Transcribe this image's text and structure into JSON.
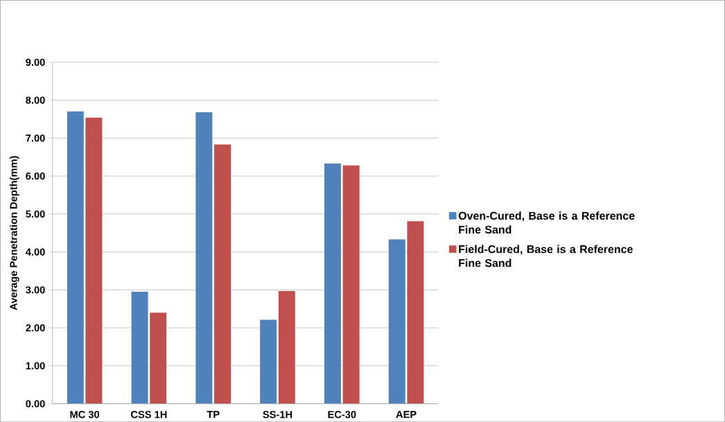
{
  "chart_data": {
    "type": "bar",
    "ylabel": "Average Penetration Depth(mm)",
    "categories": [
      "MC 30",
      "CSS 1H",
      "TP",
      "SS-1H",
      "EC-30",
      "AEP"
    ],
    "series": [
      {
        "name": "Oven-Cured, Base is a Reference Fine Sand",
        "color": "#4f81bd",
        "values": [
          7.71,
          2.95,
          7.68,
          2.21,
          6.33,
          4.33
        ]
      },
      {
        "name": "Field-Cured, Base is a  Reference Fine Sand",
        "color": "#c0504d",
        "values": [
          7.54,
          2.4,
          6.83,
          2.97,
          6.28,
          4.81
        ]
      }
    ],
    "ylim": [
      0,
      9
    ],
    "yticks": [
      {
        "value": 0,
        "label": "0.00"
      },
      {
        "value": 1,
        "label": "1.00"
      },
      {
        "value": 2,
        "label": "2.00"
      },
      {
        "value": 3,
        "label": "3.00"
      },
      {
        "value": 4,
        "label": "4.00"
      },
      {
        "value": 5,
        "label": "5.00"
      },
      {
        "value": 6,
        "label": "6.00"
      },
      {
        "value": 7,
        "label": "7.00"
      },
      {
        "value": 8,
        "label": "8.00"
      },
      {
        "value": 9,
        "label": "9.00"
      }
    ],
    "grid": "y",
    "legend": "right"
  }
}
